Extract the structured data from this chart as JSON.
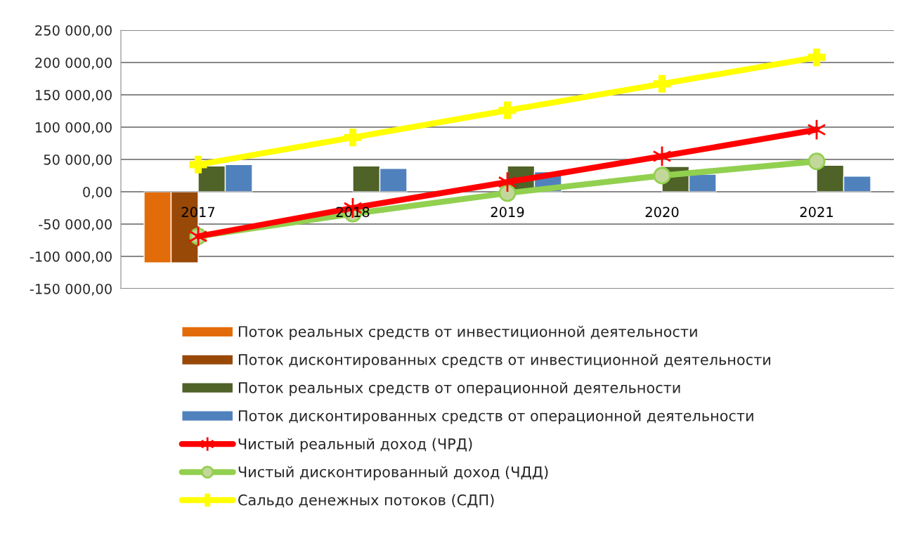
{
  "chart_data": {
    "type": "bar",
    "categories": [
      "2017",
      "2018",
      "2019",
      "2020",
      "2021"
    ],
    "series": [
      {
        "name": "Поток реальных средств от инвестиционной деятельности",
        "color": "#e36c0a",
        "values": [
          -110000,
          null,
          null,
          null,
          null
        ]
      },
      {
        "name": "Поток дисконтированных средств от инвестиционной деятельности",
        "color": "#984807",
        "values": [
          -110000,
          null,
          null,
          null,
          null
        ]
      },
      {
        "name": "Поток реальных средств от операционной деятельности",
        "color": "#4f6228",
        "values": [
          40000,
          40000,
          40000,
          39000,
          41000
        ]
      },
      {
        "name": "Поток дисконтированных средств от операционной деятельности",
        "color": "#4f81bd",
        "values": [
          42000,
          36000,
          31000,
          27000,
          24000
        ]
      },
      {
        "name": "Чистый реальный доход (ЧРД)",
        "type": "line",
        "marker": "cross",
        "color": "#ff0000",
        "values": [
          -69000,
          -25000,
          15000,
          55000,
          96000
        ]
      },
      {
        "name": "Чистый дисконтированный доход (ЧДД)",
        "type": "line",
        "marker": "circle",
        "color": "#92d050",
        "values": [
          -69000,
          -34000,
          -2000,
          25000,
          47000
        ]
      },
      {
        "name": "Сальдо денежных потоков (СДП)",
        "type": "line",
        "marker": "cross",
        "color": "#ffff00",
        "values": [
          42000,
          84000,
          126000,
          167000,
          208000
        ]
      }
    ],
    "ylim": [
      -150000,
      250000
    ],
    "yticks": [
      {
        "value": -150000,
        "label": "-150 000,00"
      },
      {
        "value": -100000,
        "label": "-100 000,00"
      },
      {
        "value": -50000,
        "label": "-50 000,00"
      },
      {
        "value": 0,
        "label": "0,00"
      },
      {
        "value": 50000,
        "label": "50 000,00"
      },
      {
        "value": 100000,
        "label": "100 000,00"
      },
      {
        "value": 150000,
        "label": "150 000,00"
      },
      {
        "value": 200000,
        "label": "200 000,00"
      },
      {
        "value": 250000,
        "label": "250 000,00"
      }
    ],
    "grid": "y",
    "legend": "bottom"
  }
}
